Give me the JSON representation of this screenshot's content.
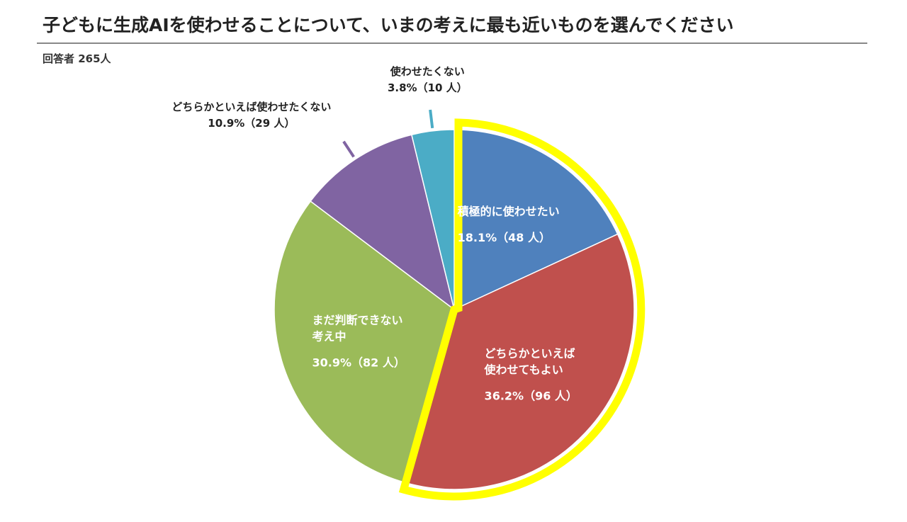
{
  "chart_data": {
    "type": "pie",
    "title": "子どもに生成AIを使わせることについて、いまの考えに最も近いものを選んでください",
    "subtitle": "回答者 265人",
    "categories": [
      "積極的に使わせたい",
      "どちらかといえば\n使わせてもよい",
      "まだ判断できない\n考え中",
      "どちらかといえば使わせたくない",
      "使わせたくない"
    ],
    "values": [
      18.1,
      36.2,
      30.9,
      10.9,
      3.8
    ],
    "value_labels": [
      "18.1%（48 人）",
      "36.2%（96 人）",
      "30.9%（82 人）",
      "10.9%（29 人）",
      "3.8%（10 人）"
    ],
    "colors": [
      "#4f81bd",
      "#c0504d",
      "#9bbb59",
      "#8064a2",
      "#4bacc6"
    ],
    "highlight": [
      0,
      1
    ],
    "highlight_color": "#ffff00"
  }
}
